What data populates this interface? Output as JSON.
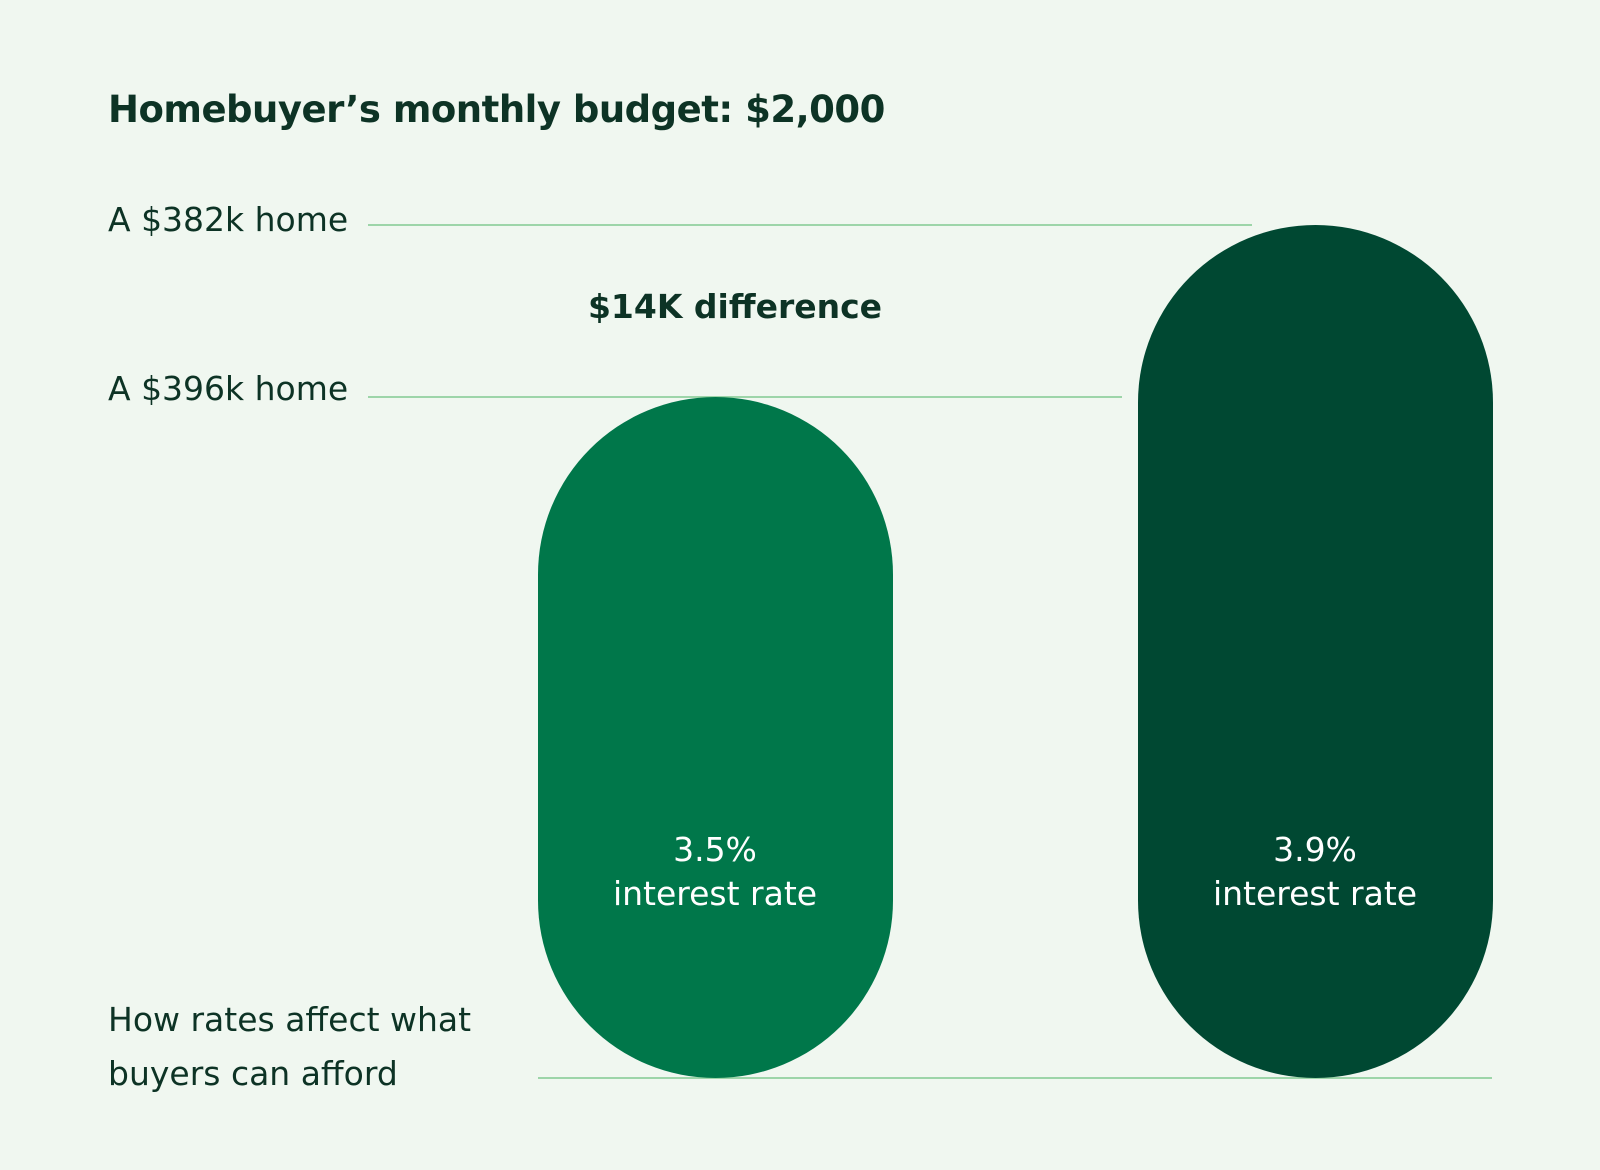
{
  "title": "Homebuyer’s monthly budget: $2,000",
  "reference_lines": [
    {
      "label": "A $382k home"
    },
    {
      "label": "A $396k home"
    }
  ],
  "difference_label": "$14K difference",
  "caption": {
    "line1": "How rates affect what",
    "line2": "buyers can afford"
  },
  "colors": {
    "background": "#f0f7f0",
    "line": "#9dd5a9",
    "text": "#0d3325",
    "bar_light": "#00774a",
    "bar_dark": "#004832"
  },
  "chart_data": {
    "type": "bar",
    "categories": [
      "3.5% interest rate",
      "3.9% interest rate"
    ],
    "series": [
      {
        "values": [
          396,
          382
        ]
      }
    ],
    "bar_labels": [
      {
        "rate": "3.5%",
        "text": "interest rate"
      },
      {
        "rate": "3.9%",
        "text": "interest rate"
      }
    ],
    "title": "Homebuyer’s monthly budget: $2,000",
    "grid": false,
    "legend": "none"
  }
}
